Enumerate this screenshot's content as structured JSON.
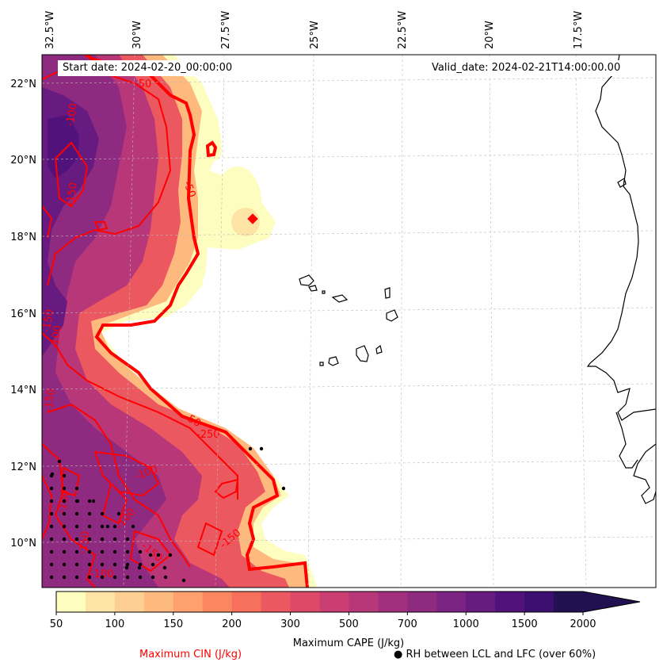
{
  "map": {
    "start_label": "Start date:",
    "start_date": "2024-02-20_00:00:00",
    "valid_label": "Valid_date:",
    "valid_date": "2024-02-21T14:00:00.00",
    "lon_ticks": [
      "32.5°W",
      "30°W",
      "27.5°W",
      "25°W",
      "22.5°W",
      "20°W",
      "17.5°W"
    ],
    "lat_ticks": [
      "22°N",
      "20°N",
      "18°N",
      "16°N",
      "14°N",
      "12°N",
      "10°N"
    ],
    "cin_labels": [
      "-50",
      "-100",
      "-150",
      "-100",
      "-150",
      "-50",
      "-250",
      "-50",
      "-150",
      "-100",
      "-150",
      "-100",
      "-100",
      "-150",
      "-100",
      "-150"
    ]
  },
  "colorbar": {
    "title": "Maximum CAPE (J/kg)",
    "ticks": [
      "50",
      "100",
      "150",
      "200",
      "300",
      "500",
      "700",
      "1000",
      "1500",
      "2000"
    ],
    "colors": [
      "#fcfdbf",
      "#fde4a6",
      "#fecf92",
      "#feb97f",
      "#fea16e",
      "#fb8761",
      "#f7705c",
      "#ec5860",
      "#de4968",
      "#cb3e72",
      "#b73779",
      "#a3307e",
      "#8f2a81",
      "#7b2382",
      "#671b80",
      "#51127c",
      "#3b0f70",
      "#221150"
    ]
  },
  "legend": {
    "cin": "Maximum CIN (J/kg)",
    "cin_color": "#ff0000",
    "rh_marker": "●",
    "rh": "RH between LCL and LFC (over 60%)"
  }
}
